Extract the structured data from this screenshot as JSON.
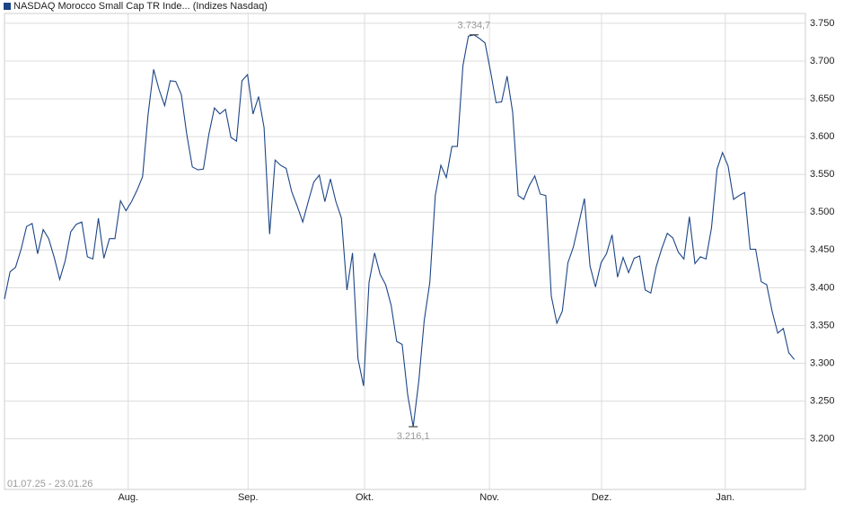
{
  "chart_data": {
    "type": "line",
    "series": [
      {
        "name": "NASDAQ Morocco Small Cap TR Inde... (Indizes Nasdaq)",
        "color": "#1c4587",
        "values": [
          3385,
          3421,
          3427,
          3451,
          3481,
          3485,
          3445,
          3477,
          3465,
          3440,
          3411,
          3436,
          3474,
          3484,
          3487,
          3441,
          3438,
          3492,
          3439,
          3465,
          3465,
          3515,
          3502,
          3514,
          3529,
          3547,
          3629,
          3689,
          3662,
          3641,
          3674,
          3673,
          3656,
          3603,
          3560,
          3556,
          3557,
          3603,
          3638,
          3630,
          3636,
          3599,
          3594,
          3674,
          3682,
          3630,
          3653,
          3612,
          3471,
          3569,
          3562,
          3558,
          3527,
          3508,
          3487,
          3514,
          3540,
          3549,
          3514,
          3544,
          3514,
          3492,
          3397,
          3446,
          3306,
          3270,
          3407,
          3446,
          3418,
          3404,
          3377,
          3329,
          3325,
          3258,
          3216.1,
          3276,
          3357,
          3407,
          3522,
          3562,
          3546,
          3587,
          3587,
          3694,
          3733,
          3734.7,
          3730,
          3724,
          3686,
          3645,
          3646,
          3680,
          3632,
          3522,
          3517,
          3535,
          3548,
          3524,
          3522,
          3389,
          3353,
          3369,
          3433,
          3454,
          3486,
          3518,
          3429,
          3401,
          3433,
          3445,
          3470,
          3414,
          3440,
          3420,
          3439,
          3442,
          3397,
          3393,
          3428,
          3452,
          3472,
          3466,
          3447,
          3438,
          3494,
          3432,
          3441,
          3438,
          3479,
          3557,
          3579,
          3561,
          3517,
          3522,
          3526,
          3451,
          3451,
          3408,
          3404,
          3368,
          3340,
          3346,
          3314,
          3305
        ]
      }
    ],
    "annotations": [
      {
        "label": "3.734,7",
        "value": 3734.7
      },
      {
        "label": "3.216,1",
        "value": 3216.1
      }
    ],
    "date_range": "01.07.25 - 23.01.26",
    "xlim": [
      0,
      145
    ],
    "xticks": [
      {
        "value": 22.4,
        "label": "Aug."
      },
      {
        "value": 44.1,
        "label": "Sep."
      },
      {
        "value": 65.2,
        "label": "Okt."
      },
      {
        "value": 87.8,
        "label": "Nov."
      },
      {
        "value": 108.1,
        "label": "Dez."
      },
      {
        "value": 130.5,
        "label": "Jan."
      }
    ],
    "ylim": [
      3133,
      3763
    ],
    "yticks": [
      {
        "value": 3200,
        "label": "3.200"
      },
      {
        "value": 3250,
        "label": "3.250"
      },
      {
        "value": 3300,
        "label": "3.300"
      },
      {
        "value": 3350,
        "label": "3.350"
      },
      {
        "value": 3400,
        "label": "3.400"
      },
      {
        "value": 3450,
        "label": "3.450"
      },
      {
        "value": 3500,
        "label": "3.500"
      },
      {
        "value": 3550,
        "label": "3.550"
      },
      {
        "value": 3600,
        "label": "3.600"
      },
      {
        "value": 3650,
        "label": "3.650"
      },
      {
        "value": 3700,
        "label": "3.700"
      },
      {
        "value": 3750,
        "label": "3.750"
      }
    ],
    "grid": true
  }
}
